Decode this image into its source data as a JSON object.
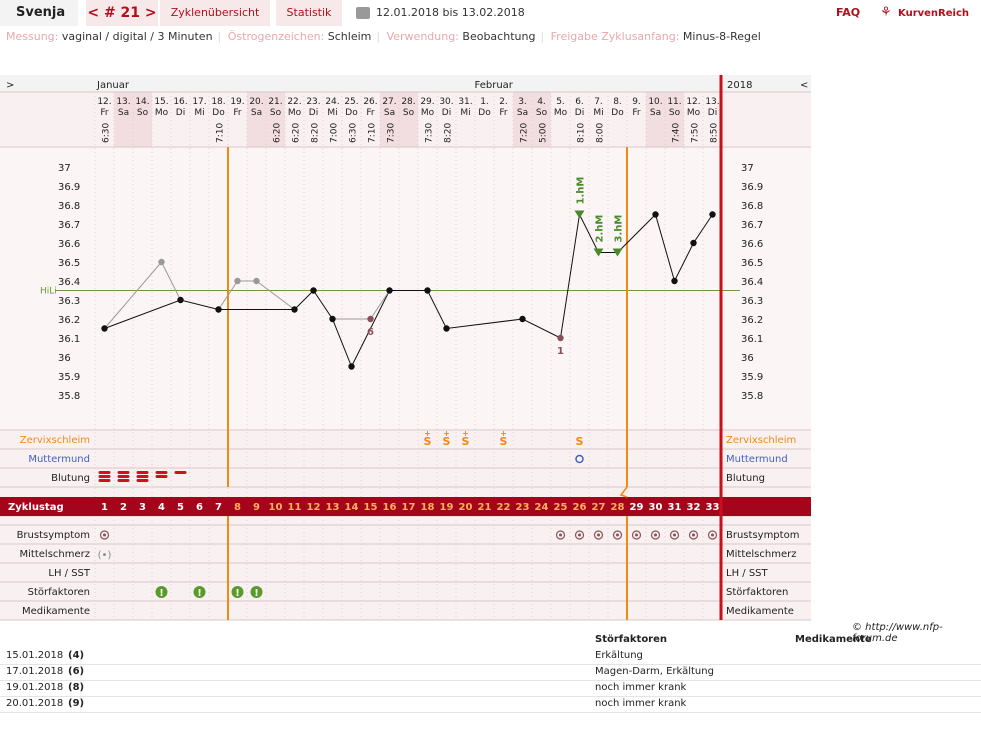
{
  "header": {
    "user": "Svenja",
    "cycle": "< # 21 >",
    "nav": [
      "Zyklenübersicht",
      "Statistik"
    ],
    "range": "12.01.2018 bis 13.02.2018",
    "faq": "FAQ",
    "logo": "KurvenReich"
  },
  "info": [
    {
      "k": "Messung:",
      "v": "vaginal / digital / 3 Minuten"
    },
    {
      "k": "Östrogenzeichen:",
      "v": "Schleim"
    },
    {
      "k": "Verwendung:",
      "v": "Beobachtung"
    },
    {
      "k": "Freigabe Zyklusanfang:",
      "v": "Minus-8-Regel"
    }
  ],
  "months": {
    "left": ">",
    "jan": "Januar",
    "feb": "Februar",
    "year": "2018",
    "right": "<"
  },
  "days": [
    {
      "d": "12.",
      "w": "Fr",
      "t": "6:30",
      "we": false
    },
    {
      "d": "13.",
      "w": "Sa",
      "t": "",
      "we": true
    },
    {
      "d": "14.",
      "w": "So",
      "t": "",
      "we": true
    },
    {
      "d": "15.",
      "w": "Mo",
      "t": "",
      "we": false
    },
    {
      "d": "16.",
      "w": "Di",
      "t": "",
      "we": false
    },
    {
      "d": "17.",
      "w": "Mi",
      "t": "",
      "we": false
    },
    {
      "d": "18.",
      "w": "Do",
      "t": "7:10",
      "we": false
    },
    {
      "d": "19.",
      "w": "Fr",
      "t": "",
      "we": false
    },
    {
      "d": "20.",
      "w": "Sa",
      "t": "",
      "we": true
    },
    {
      "d": "21.",
      "w": "So",
      "t": "6:20",
      "we": true
    },
    {
      "d": "22.",
      "w": "Mo",
      "t": "6:20",
      "we": false
    },
    {
      "d": "23.",
      "w": "Di",
      "t": "8:20",
      "we": false
    },
    {
      "d": "24.",
      "w": "Mi",
      "t": "7:00",
      "we": false
    },
    {
      "d": "25.",
      "w": "Do",
      "t": "6:30",
      "we": false
    },
    {
      "d": "26.",
      "w": "Fr",
      "t": "7:10",
      "we": false
    },
    {
      "d": "27.",
      "w": "Sa",
      "t": "7:30",
      "we": true
    },
    {
      "d": "28.",
      "w": "So",
      "t": "",
      "we": true
    },
    {
      "d": "29.",
      "w": "Mo",
      "t": "7:30",
      "we": false
    },
    {
      "d": "30.",
      "w": "Di",
      "t": "8:20",
      "we": false
    },
    {
      "d": "31.",
      "w": "Mi",
      "t": "",
      "we": false
    },
    {
      "d": "1.",
      "w": "Do",
      "t": "",
      "we": false
    },
    {
      "d": "2.",
      "w": "Fr",
      "t": "",
      "we": false
    },
    {
      "d": "3.",
      "w": "Sa",
      "t": "7:20",
      "we": true
    },
    {
      "d": "4.",
      "w": "So",
      "t": "5:00",
      "we": true
    },
    {
      "d": "5.",
      "w": "Mo",
      "t": "",
      "we": false
    },
    {
      "d": "6.",
      "w": "Di",
      "t": "8:10",
      "we": false
    },
    {
      "d": "7.",
      "w": "Mi",
      "t": "8:00",
      "we": false
    },
    {
      "d": "8.",
      "w": "Do",
      "t": "",
      "we": false
    },
    {
      "d": "9.",
      "w": "Fr",
      "t": "",
      "we": false
    },
    {
      "d": "10.",
      "w": "Sa",
      "t": "",
      "we": true
    },
    {
      "d": "11.",
      "w": "So",
      "t": "7:40",
      "we": true
    },
    {
      "d": "12.",
      "w": "Mo",
      "t": "7:50",
      "we": false
    },
    {
      "d": "13.",
      "w": "Di",
      "t": "8:50",
      "we": false
    }
  ],
  "yticks": [
    "37",
    "36.9",
    "36.8",
    "36.7",
    "36.6",
    "36.5",
    "36.4",
    "36.3",
    "36.2",
    "36.1",
    "36",
    "35.9",
    "35.8"
  ],
  "chart_data": {
    "type": "line",
    "x": [
      1,
      2,
      3,
      4,
      5,
      6,
      7,
      8,
      9,
      10,
      11,
      12,
      13,
      14,
      15,
      16,
      17,
      18,
      19,
      20,
      21,
      22,
      23,
      24,
      25,
      26,
      27,
      28,
      29,
      30,
      31,
      32,
      33
    ],
    "temps": [
      36.15,
      null,
      null,
      36.5,
      36.3,
      null,
      36.25,
      36.4,
      36.4,
      null,
      36.25,
      36.35,
      36.2,
      35.95,
      36.2,
      36.35,
      null,
      36.35,
      36.15,
      null,
      null,
      null,
      36.2,
      null,
      36.1,
      36.75,
      36.55,
      36.55,
      null,
      36.75,
      36.4,
      36.6,
      36.75
    ],
    "excluded_days": [
      4,
      8,
      9,
      15
    ],
    "ylim": [
      35.7,
      37.1
    ],
    "hilo": {
      "label": "HiLi",
      "value": 36.35
    },
    "annotations": [
      {
        "day": 15,
        "text": "6"
      },
      {
        "day": 25,
        "text": "1"
      },
      {
        "day": 26,
        "text": "1.hM"
      },
      {
        "day": 27,
        "text": "2.hM"
      },
      {
        "day": 28,
        "text": "3.hM"
      }
    ],
    "vlines": [
      8,
      29
    ]
  },
  "rows": {
    "zerv": "Zervixschleim",
    "mutter": "Muttermund",
    "blutung": "Blutung",
    "zyklustag": "Zyklustag",
    "brust": "Brustsymptom",
    "mittel": "Mittelschmerz",
    "lh": "LH / SST",
    "stor": "Störfaktoren",
    "medi": "Medikamente"
  },
  "zerv_marks": [
    {
      "day": 18,
      "s": "S+"
    },
    {
      "day": 19,
      "s": "S+"
    },
    {
      "day": 20,
      "s": "S+"
    },
    {
      "day": 22,
      "s": "S+"
    },
    {
      "day": 26,
      "s": "S"
    }
  ],
  "mutter_days": [
    26
  ],
  "bleed": [
    {
      "day": 1,
      "level": 3
    },
    {
      "day": 2,
      "level": 3
    },
    {
      "day": 3,
      "level": 3
    },
    {
      "day": 4,
      "level": 2
    },
    {
      "day": 5,
      "level": 1
    }
  ],
  "brust_days": [
    1,
    25,
    26,
    27,
    28,
    29,
    30,
    31,
    32,
    33
  ],
  "mittel_days": [
    1
  ],
  "stor_days": [
    4,
    6,
    8,
    9
  ],
  "copyright": "© http://www.nfp-forum.de",
  "table": {
    "h1": "Störfaktoren",
    "h2": "Medikamente",
    "rows": [
      {
        "date": "15.01.2018",
        "n": "(4)",
        "s": "Erkältung"
      },
      {
        "date": "17.01.2018",
        "n": "(6)",
        "s": "Magen-Darm, Erkältung"
      },
      {
        "date": "19.01.2018",
        "n": "(8)",
        "s": "noch immer krank"
      },
      {
        "date": "20.01.2018",
        "n": "(9)",
        "s": "noch immer krank"
      }
    ]
  }
}
